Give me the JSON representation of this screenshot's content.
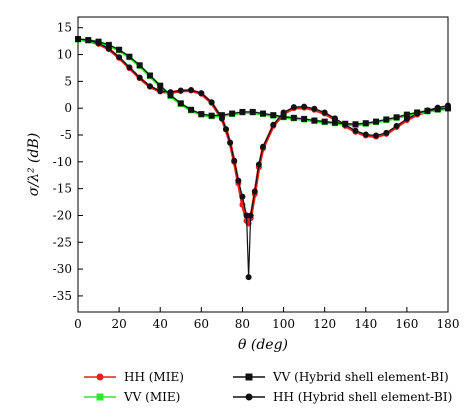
{
  "chart_data": {
    "type": "line",
    "title": "",
    "xlabel": "θ (deg)",
    "ylabel": "σ/λ² (dB)",
    "xlim": [
      0,
      180
    ],
    "ylim": [
      -38,
      17
    ],
    "x_ticks": [
      0,
      20,
      40,
      60,
      80,
      100,
      120,
      140,
      160,
      180
    ],
    "y_ticks": [
      15,
      10,
      5,
      0,
      -5,
      -10,
      -15,
      -20,
      -25,
      -30,
      -35
    ],
    "grid": false,
    "legend_position": "bottom",
    "series": [
      {
        "name": "HH (MIE)",
        "color": "#e8201c",
        "marker": "circle",
        "x": [
          0,
          5,
          10,
          15,
          20,
          25,
          30,
          35,
          40,
          45,
          50,
          55,
          60,
          65,
          70,
          72,
          74,
          76,
          78,
          80,
          82,
          83,
          84,
          86,
          88,
          90,
          95,
          100,
          105,
          110,
          115,
          120,
          125,
          130,
          135,
          140,
          145,
          150,
          155,
          160,
          165,
          170,
          175,
          180
        ],
        "y": [
          12.8,
          12.6,
          12.0,
          11.0,
          9.4,
          7.5,
          5.6,
          4.0,
          3.1,
          2.9,
          3.2,
          3.3,
          2.7,
          1.0,
          -2.0,
          -4.0,
          -6.5,
          -10.0,
          -14.0,
          -18.0,
          -21.0,
          -21.5,
          -20.5,
          -16.0,
          -11.0,
          -7.5,
          -3.3,
          -1.0,
          0.0,
          0.1,
          -0.3,
          -1.0,
          -2.1,
          -3.3,
          -4.4,
          -5.1,
          -5.3,
          -4.8,
          -3.5,
          -2.2,
          -1.2,
          -0.6,
          -0.2,
          0.0
        ]
      },
      {
        "name": "VV (MIE)",
        "color": "#2ee82e",
        "marker": "square",
        "x": [
          0,
          5,
          10,
          15,
          20,
          25,
          30,
          35,
          40,
          45,
          50,
          55,
          60,
          65,
          70,
          75,
          80,
          85,
          90,
          95,
          100,
          105,
          110,
          115,
          120,
          125,
          130,
          135,
          140,
          145,
          150,
          155,
          160,
          165,
          170,
          175,
          180
        ],
        "y": [
          12.8,
          12.6,
          12.3,
          11.7,
          10.8,
          9.5,
          7.9,
          6.0,
          4.1,
          2.3,
          0.8,
          -0.4,
          -1.2,
          -1.5,
          -1.4,
          -1.1,
          -0.8,
          -0.8,
          -1.1,
          -1.4,
          -1.7,
          -1.9,
          -2.1,
          -2.4,
          -2.6,
          -2.8,
          -3.0,
          -3.1,
          -2.9,
          -2.6,
          -2.2,
          -1.8,
          -1.3,
          -0.9,
          -0.6,
          -0.3,
          -0.1
        ]
      },
      {
        "name": "VV (Hybrid shell element-BI)",
        "color": "#111111",
        "marker": "square",
        "x": [
          0,
          5,
          10,
          15,
          20,
          25,
          30,
          35,
          40,
          45,
          50,
          55,
          60,
          65,
          70,
          75,
          80,
          85,
          90,
          95,
          100,
          105,
          110,
          115,
          120,
          125,
          130,
          135,
          140,
          145,
          150,
          155,
          160,
          165,
          170,
          175,
          180
        ],
        "y": [
          12.9,
          12.7,
          12.4,
          11.8,
          10.9,
          9.6,
          8.0,
          6.1,
          4.2,
          2.4,
          0.9,
          -0.3,
          -1.1,
          -1.4,
          -1.3,
          -1.0,
          -0.7,
          -0.7,
          -1.0,
          -1.3,
          -1.6,
          -1.8,
          -2.0,
          -2.3,
          -2.5,
          -2.7,
          -2.9,
          -3.0,
          -2.8,
          -2.5,
          -2.1,
          -1.7,
          -1.2,
          -0.8,
          -0.5,
          -0.2,
          0.0
        ]
      },
      {
        "name": "HH (Hybrid shell element-BI)",
        "color": "#111111",
        "marker": "circle",
        "x": [
          0,
          5,
          10,
          15,
          20,
          25,
          30,
          35,
          40,
          45,
          50,
          55,
          60,
          65,
          70,
          72,
          74,
          76,
          78,
          80,
          82,
          83,
          84,
          86,
          88,
          90,
          95,
          100,
          105,
          110,
          115,
          120,
          125,
          130,
          135,
          140,
          145,
          150,
          155,
          160,
          165,
          170,
          175,
          180
        ],
        "y": [
          12.9,
          12.7,
          12.1,
          11.1,
          9.5,
          7.6,
          5.7,
          4.1,
          3.2,
          3.0,
          3.3,
          3.4,
          2.8,
          1.1,
          -1.9,
          -3.9,
          -6.4,
          -9.8,
          -13.5,
          -16.5,
          -20.0,
          -31.5,
          -20.0,
          -15.5,
          -10.5,
          -7.2,
          -3.1,
          -0.8,
          0.2,
          0.3,
          -0.1,
          -0.8,
          -1.9,
          -3.1,
          -4.2,
          -4.9,
          -5.1,
          -4.6,
          -3.3,
          -2.0,
          -1.0,
          -0.4,
          0.1,
          0.5
        ]
      }
    ]
  }
}
